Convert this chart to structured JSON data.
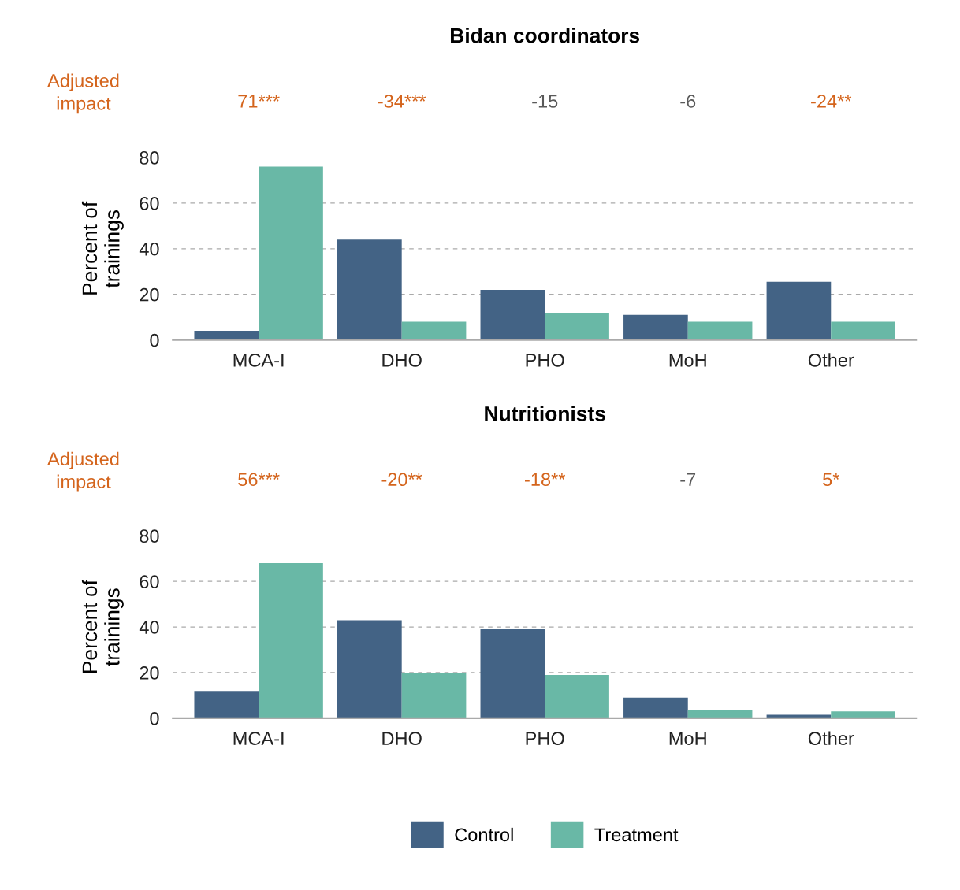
{
  "chart_data": [
    {
      "type": "bar",
      "title": "Bidan coordinators",
      "ylabel": "Percent of\ntrainings",
      "categories": [
        "MCA-I",
        "DHO",
        "PHO",
        "MoH",
        "Other"
      ],
      "series": [
        {
          "name": "Control",
          "color": "#436385",
          "values": [
            4,
            44,
            22,
            11,
            25.5
          ]
        },
        {
          "name": "Treatment",
          "color": "#69b8a6",
          "values": [
            76,
            8,
            12,
            8,
            8
          ]
        }
      ],
      "ylim": [
        0,
        80
      ],
      "yticks": [
        0,
        20,
        40,
        60,
        80
      ],
      "grid": "y",
      "legend": "bottom",
      "annotations": [
        "Adjusted\nimpact",
        "71***",
        "-34***",
        "-15",
        "-6",
        "-24**"
      ]
    },
    {
      "type": "bar",
      "title": "Nutritionists",
      "ylabel": "Percent of\ntrainings",
      "categories": [
        "MCA-I",
        "DHO",
        "PHO",
        "MoH",
        "Other"
      ],
      "series": [
        {
          "name": "Control",
          "color": "#436385",
          "values": [
            12,
            43,
            39,
            9,
            1.5
          ]
        },
        {
          "name": "Treatment",
          "color": "#69b8a6",
          "values": [
            68,
            20,
            19,
            3.5,
            3
          ]
        }
      ],
      "ylim": [
        0,
        80
      ],
      "yticks": [
        0,
        20,
        40,
        60,
        80
      ],
      "grid": "y",
      "legend": "bottom",
      "annotations": [
        "Adjusted\nimpact",
        "56***",
        "-20**",
        "-18**",
        "-7",
        "5*"
      ]
    }
  ]
}
